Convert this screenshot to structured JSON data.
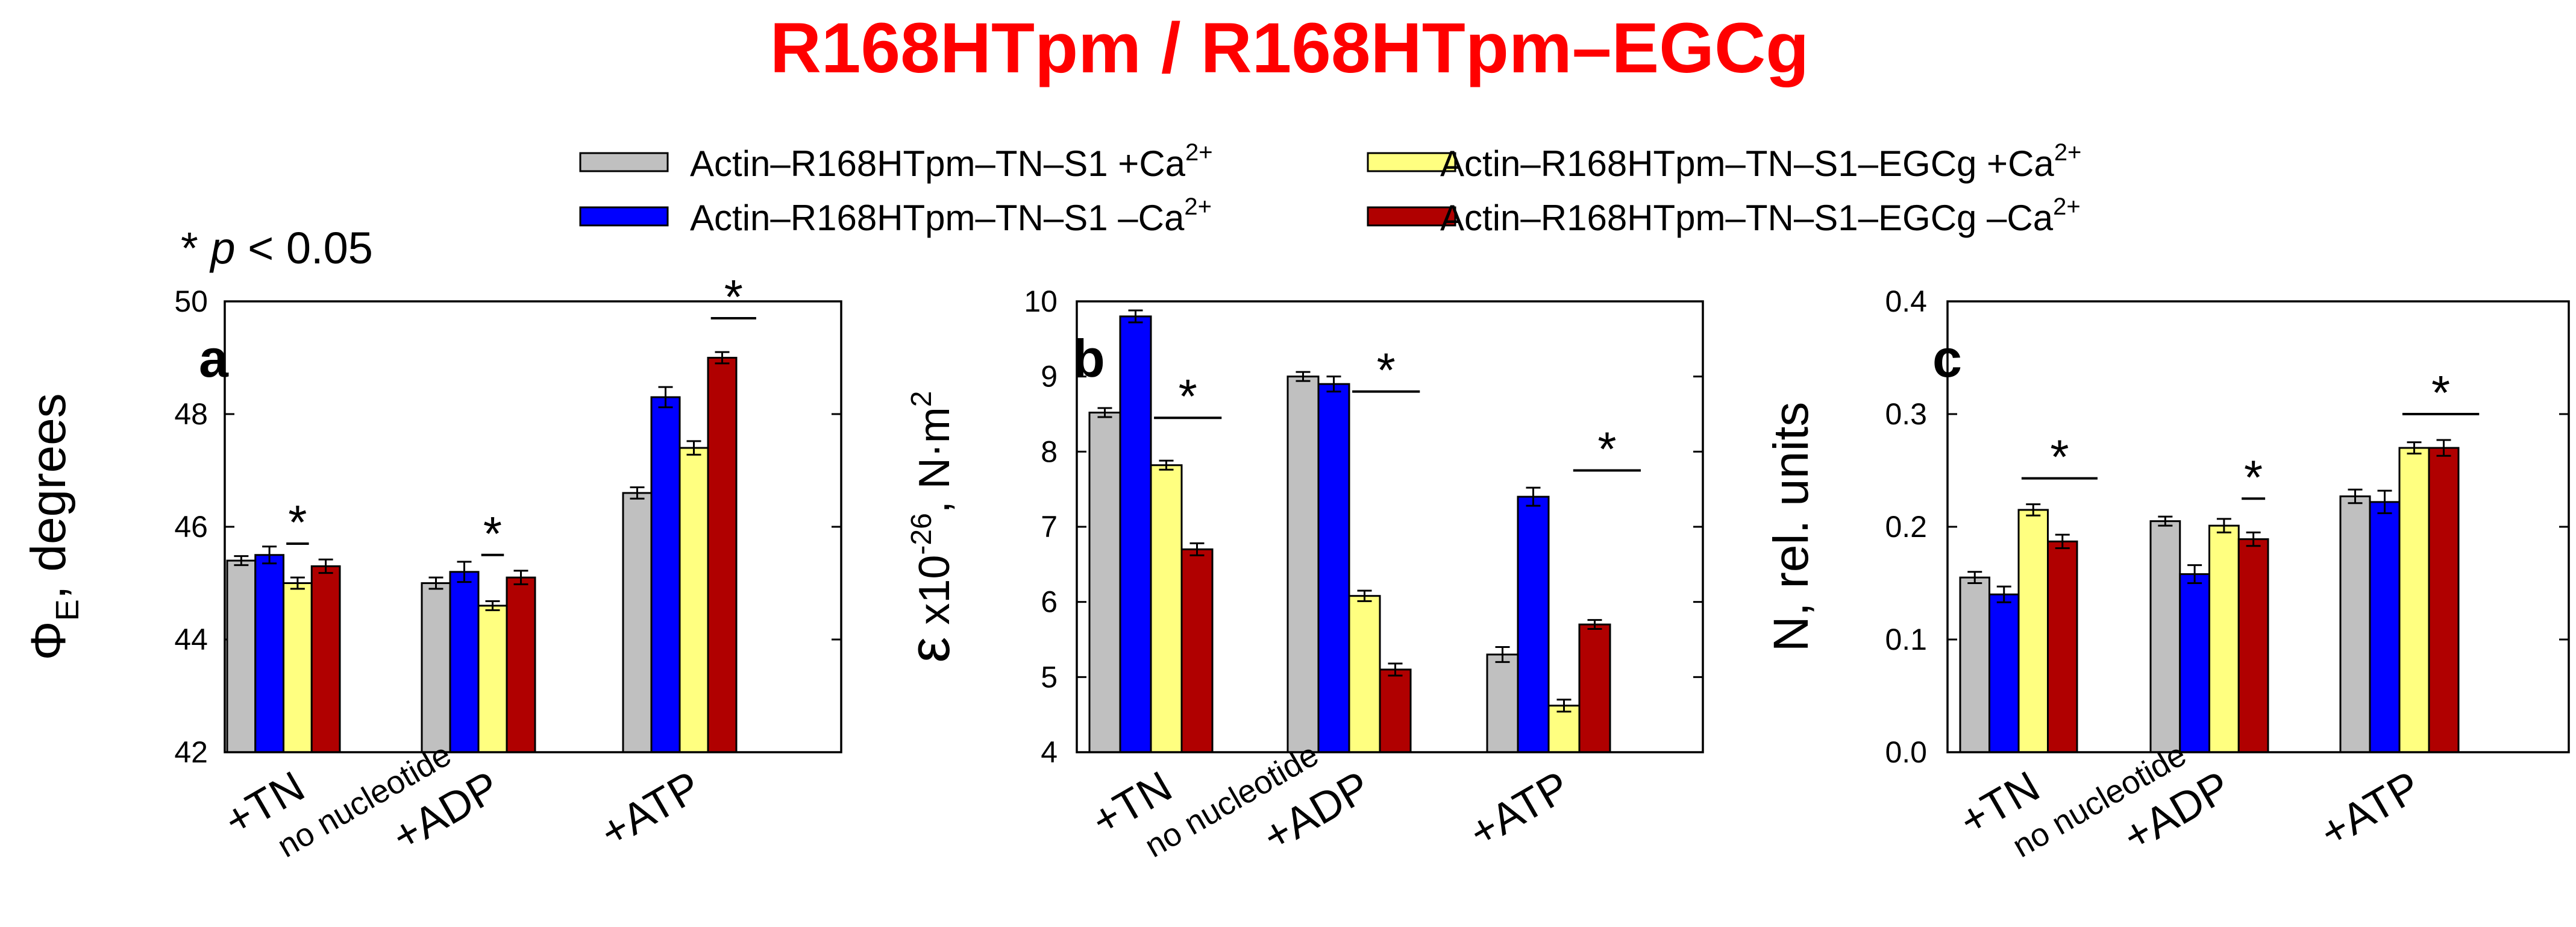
{
  "title": "R168HTpm / R168HTpm–EGCg",
  "significance_note": {
    "star": "* ",
    "p": "p",
    "rest": " < 0.05"
  },
  "legend": [
    {
      "base": "Actin–R168HTpm–TN–S1 +Ca",
      "sup": "2+",
      "color": "#c0c0c0"
    },
    {
      "base": "Actin–R168HTpm–TN–S1 –Ca",
      "sup": "2+",
      "color": "#0000ff"
    },
    {
      "base": "Actin–R168HTpm–TN–S1–EGCg +Ca",
      "sup": "2+",
      "color": "#ffff80"
    },
    {
      "base": "Actin–R168HTpm–TN–S1–EGCg –Ca",
      "sup": "2+",
      "color": "#b00000"
    }
  ],
  "colors": {
    "title": "#ff0000",
    "axis": "#000000"
  },
  "chart_data": [
    {
      "type": "bar",
      "panel_label": "a",
      "ylabel": {
        "main": "Φ",
        "sub": "E",
        "rest": ", degrees"
      },
      "ylim": [
        42,
        50
      ],
      "yticks": [
        "42",
        "44",
        "46",
        "48",
        "50"
      ],
      "categories": [
        {
          "line1": "+TN",
          "line2": "no nucleotide"
        },
        {
          "line1": "+ADP",
          "line2": ""
        },
        {
          "line1": "+ATP",
          "line2": ""
        }
      ],
      "series": [
        {
          "values": [
            45.4,
            45.0,
            46.6
          ],
          "errors": [
            0.08,
            0.1,
            0.1
          ]
        },
        {
          "values": [
            45.5,
            45.2,
            48.3
          ],
          "errors": [
            0.15,
            0.18,
            0.18
          ]
        },
        {
          "values": [
            45.0,
            44.6,
            47.4
          ],
          "errors": [
            0.1,
            0.08,
            0.12
          ]
        },
        {
          "values": [
            45.3,
            45.1,
            49.0
          ],
          "errors": [
            0.12,
            0.12,
            0.1
          ]
        }
      ],
      "significance": [
        {
          "category": 0,
          "from": 2,
          "to": 2,
          "y": 45.7,
          "label": "*"
        },
        {
          "category": 1,
          "from": 2,
          "to": 2,
          "y": 45.5,
          "label": "*"
        },
        {
          "category": 2,
          "from": 3,
          "to": 3.8,
          "y": 49.7,
          "label": "*"
        }
      ]
    },
    {
      "type": "bar",
      "panel_label": "b",
      "ylabel": {
        "main": "ε",
        "mid": " x10",
        "sup": "-26",
        "rest": ", N·m",
        "sup2": "2"
      },
      "ylim": [
        4,
        10
      ],
      "yticks": [
        "4",
        "5",
        "6",
        "7",
        "8",
        "9",
        "10"
      ],
      "categories": [
        {
          "line1": "+TN",
          "line2": "no nucleotide"
        },
        {
          "line1": "+ADP",
          "line2": ""
        },
        {
          "line1": "+ATP",
          "line2": ""
        }
      ],
      "series": [
        {
          "values": [
            8.52,
            9.0,
            5.3
          ],
          "errors": [
            0.06,
            0.06,
            0.1
          ]
        },
        {
          "values": [
            9.8,
            8.9,
            7.4
          ],
          "errors": [
            0.08,
            0.1,
            0.12
          ]
        },
        {
          "values": [
            7.82,
            6.08,
            4.62
          ],
          "errors": [
            0.06,
            0.07,
            0.08
          ]
        },
        {
          "values": [
            6.7,
            5.1,
            5.7
          ],
          "errors": [
            0.08,
            0.08,
            0.06
          ]
        }
      ],
      "significance": [
        {
          "category": 0,
          "from": 2,
          "to": 3.4,
          "y": 8.45,
          "label": "*"
        },
        {
          "category": 1,
          "from": 2,
          "to": 3.4,
          "y": 8.8,
          "label": "*"
        },
        {
          "category": 2,
          "from": 2.7,
          "to": 4.1,
          "y": 7.75,
          "label": "*"
        }
      ]
    },
    {
      "type": "bar",
      "panel_label": "c",
      "ylabel": {
        "main": "N, rel. units"
      },
      "ylim": [
        0,
        0.4
      ],
      "yticks": [
        "0.0",
        "0.1",
        "0.2",
        "0.3",
        "0.4"
      ],
      "categories": [
        {
          "line1": "+TN",
          "line2": "no nucleotide"
        },
        {
          "line1": "+ADP",
          "line2": ""
        },
        {
          "line1": "+ATP",
          "line2": ""
        }
      ],
      "series": [
        {
          "values": [
            0.155,
            0.205,
            0.227
          ],
          "errors": [
            0.005,
            0.004,
            0.006
          ]
        },
        {
          "values": [
            0.14,
            0.158,
            0.222
          ],
          "errors": [
            0.007,
            0.008,
            0.01
          ]
        },
        {
          "values": [
            0.215,
            0.201,
            0.27
          ],
          "errors": [
            0.005,
            0.006,
            0.005
          ]
        },
        {
          "values": [
            0.187,
            0.189,
            0.27
          ],
          "errors": [
            0.006,
            0.006,
            0.007
          ]
        }
      ],
      "significance": [
        {
          "category": 0,
          "from": 2,
          "to": 3.8,
          "y": 0.243,
          "label": "*"
        },
        {
          "category": 1,
          "from": 3,
          "to": 3,
          "y": 0.225,
          "label": "*"
        },
        {
          "category": 2,
          "from": 2,
          "to": 3.8,
          "y": 0.3,
          "label": "*"
        }
      ]
    }
  ]
}
